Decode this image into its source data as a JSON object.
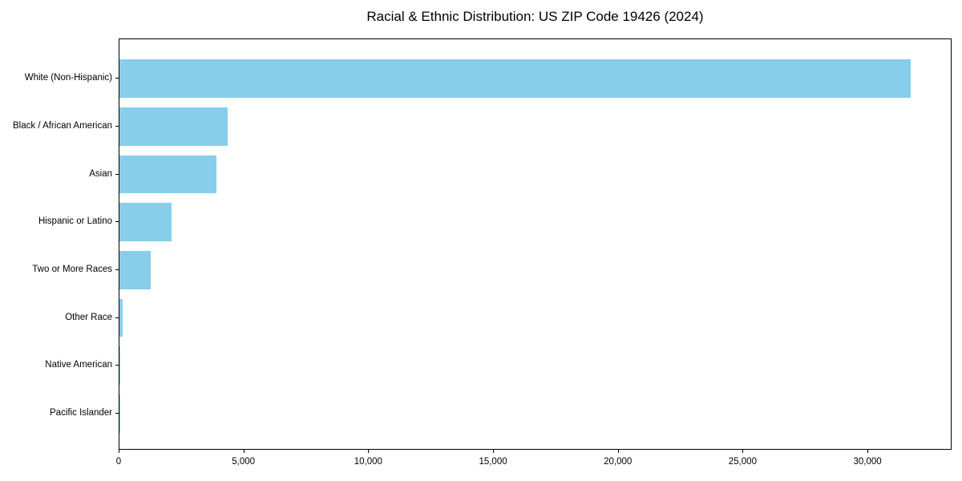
{
  "colors": {
    "bar": "#87CEEB",
    "axis": "#000000",
    "background": "#FFFFFF",
    "text": "#000000"
  },
  "chart_data": {
    "type": "bar",
    "orientation": "horizontal",
    "title": "Racial & Ethnic Distribution: US ZIP Code 19426 (2024)",
    "categories": [
      "White (Non-Hispanic)",
      "Black / African American",
      "Asian",
      "Hispanic or Latino",
      "Two or More Races",
      "Other Race",
      "Native American",
      "Pacific Islander"
    ],
    "values": [
      31700,
      4350,
      3900,
      2100,
      1250,
      140,
      20,
      10
    ],
    "xlabel": "",
    "ylabel": "",
    "xlim": [
      0,
      33370
    ],
    "xticks": [
      {
        "value": 0,
        "label": "0"
      },
      {
        "value": 5000,
        "label": "5,000"
      },
      {
        "value": 10000,
        "label": "10,000"
      },
      {
        "value": 15000,
        "label": "15,000"
      },
      {
        "value": 20000,
        "label": "20,000"
      },
      {
        "value": 25000,
        "label": "25,000"
      },
      {
        "value": 30000,
        "label": "30,000"
      }
    ],
    "grid": false,
    "legend": null,
    "bar_color": "#87CEEB"
  }
}
